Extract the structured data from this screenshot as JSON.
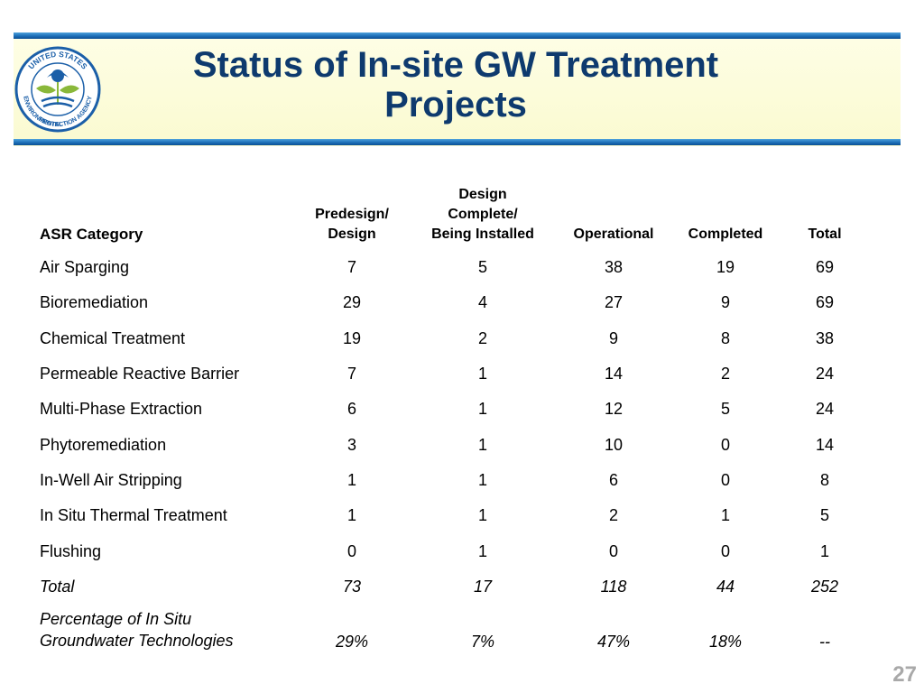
{
  "slide": {
    "title_line1": "Status of In-site GW Treatment",
    "title_line2": "Projects",
    "page_number": "27",
    "logo": {
      "text_top": "UNITED STATES",
      "text_left": "ENVIRONMENTAL",
      "text_bottom": "PROTECTION",
      "text_right": "AGENCY"
    }
  },
  "table": {
    "headers": {
      "category": "ASR Category",
      "predesign_l1": "Predesign/",
      "predesign_l2": "Design",
      "design_l1": "Design",
      "design_l2": "Complete/",
      "design_l3": "Being Installed",
      "operational": "Operational",
      "completed": "Completed",
      "total": "Total"
    },
    "rows": [
      [
        "Air Sparging",
        "7",
        "5",
        "38",
        "19",
        "69"
      ],
      [
        "Bioremediation",
        "29",
        "4",
        "27",
        "9",
        "69"
      ],
      [
        "Chemical Treatment",
        "19",
        "2",
        "9",
        "8",
        "38"
      ],
      [
        "Permeable Reactive Barrier",
        "7",
        "1",
        "14",
        "2",
        "24"
      ],
      [
        "Multi-Phase Extraction",
        "6",
        "1",
        "12",
        "5",
        "24"
      ],
      [
        "Phytoremediation",
        "3",
        "1",
        "10",
        "0",
        "14"
      ],
      [
        "In-Well Air Stripping",
        "1",
        "1",
        "6",
        "0",
        "8"
      ],
      [
        "In Situ Thermal Treatment",
        "1",
        "1",
        "2",
        "1",
        "5"
      ],
      [
        "Flushing",
        "0",
        "1",
        "0",
        "0",
        "1"
      ]
    ],
    "total_row": [
      "Total",
      "73",
      "17",
      "118",
      "44",
      "252"
    ],
    "percentage_row": {
      "label_l1": "Percentage of In Situ",
      "label_l2": "Groundwater Technologies",
      "values": [
        "29%",
        "7%",
        "47%",
        "18%",
        "--"
      ]
    }
  },
  "colors": {
    "title": "#0e3a6e",
    "banner": "#fafad0",
    "bar": "#1d6fb8",
    "page_number": "#a9a9a9",
    "logo_blue": "#1b5fa8",
    "logo_green": "#8ab83a"
  }
}
